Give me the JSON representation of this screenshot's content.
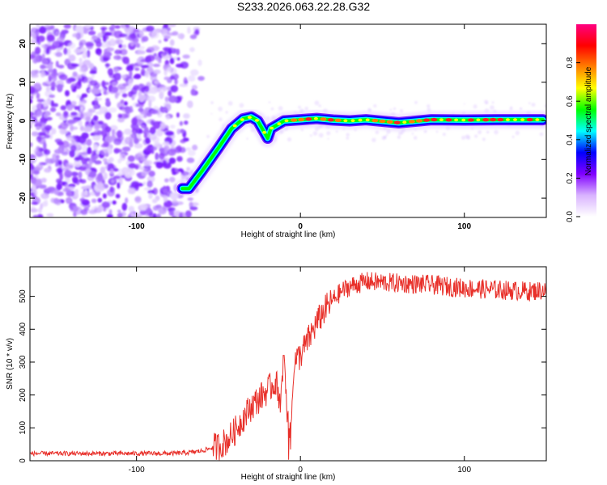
{
  "title": "S233.2026.063.22.28.G32",
  "chart_data": [
    {
      "type": "heatmap",
      "xlabel": "Height of straight line (km)",
      "ylabel": "Frequency (Hz)",
      "xlim": [
        -165,
        150
      ],
      "ylim": [
        -25,
        25
      ],
      "xticks": [
        -100,
        0,
        100
      ],
      "yticks": [
        -20,
        -10,
        0,
        10,
        20
      ],
      "noise_region_x": [
        -165,
        -60
      ],
      "ridge_x": [
        -72,
        -68,
        -60,
        -50,
        -42,
        -35,
        -30,
        -26,
        -22,
        -20,
        -18,
        -10,
        0,
        10,
        20,
        30,
        40,
        60,
        80,
        100,
        120,
        148
      ],
      "ridge_y": [
        -17.5,
        -17.5,
        -13,
        -7,
        -2,
        0.5,
        1,
        0,
        -3,
        -4.5,
        -2,
        0,
        0.3,
        0.6,
        0.2,
        0,
        0.3,
        -0.5,
        0.3,
        0.2,
        0.3,
        0.3
      ],
      "colorbar": {
        "label": "Normalized spectral amplitude",
        "range": [
          0,
          1
        ],
        "ticks": [
          "0.0",
          "0.2",
          "0.4",
          "0.6",
          "0.8"
        ],
        "tick_values": [
          0,
          0.2,
          0.4,
          0.6,
          0.8
        ],
        "colors": [
          "#ffffff",
          "#d9b3ff",
          "#8000ff",
          "#0000ff",
          "#00ffff",
          "#00ff00",
          "#ffff00",
          "#ff8000",
          "#ff0000",
          "#ff0080"
        ]
      }
    },
    {
      "type": "line",
      "xlabel": "Height of straight line (km)",
      "ylabel": "SNR (10 * v/v)",
      "xlim": [
        -165,
        150
      ],
      "ylim": [
        0,
        590
      ],
      "xticks": [
        -100,
        0,
        100
      ],
      "yticks": [
        0,
        100,
        200,
        300,
        400,
        500
      ],
      "color": "#e8302a",
      "series": [
        {
          "name": "SNR",
          "x": [
            -165,
            -140,
            -120,
            -100,
            -80,
            -70,
            -60,
            -50,
            -45,
            -40,
            -35,
            -30,
            -25,
            -20,
            -15,
            -12,
            -10,
            -8,
            -6,
            -4,
            0,
            5,
            10,
            15,
            20,
            25,
            30,
            40,
            60,
            80,
            100,
            120,
            140,
            150
          ],
          "values": [
            22,
            22,
            22,
            22,
            22,
            24,
            30,
            45,
            60,
            90,
            130,
            165,
            190,
            215,
            240,
            180,
            340,
            150,
            60,
            300,
            320,
            370,
            420,
            460,
            490,
            515,
            530,
            545,
            540,
            535,
            525,
            520,
            515,
            520
          ]
        }
      ]
    }
  ]
}
